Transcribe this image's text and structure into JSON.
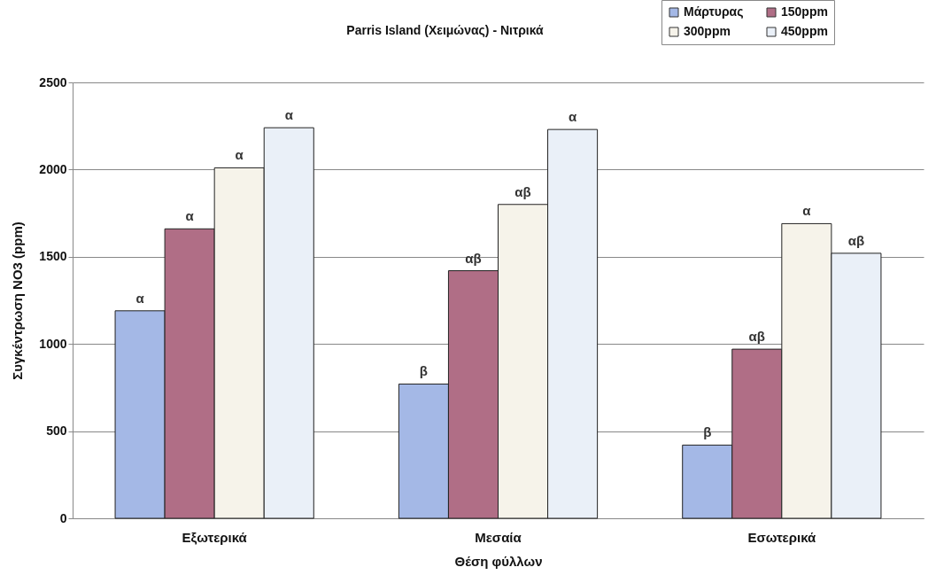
{
  "chart_data": {
    "type": "bar",
    "title": "Parris Island (Χειμώνας) - Νιτρικά",
    "xlabel": "Θέση φύλλων",
    "ylabel": "Συγκέντρωση NO3 (ppm)",
    "categories": [
      "Εξωτερικά",
      "Μεσαία",
      "Εσωτερικά"
    ],
    "series": [
      {
        "name": "Μάρτυρας",
        "color": "#a4b8e6",
        "values": [
          1190,
          770,
          420
        ],
        "value_labels": [
          "α",
          "β",
          "β"
        ]
      },
      {
        "name": "150ppm",
        "color": "#b06e86",
        "values": [
          1660,
          1420,
          970
        ],
        "value_labels": [
          "α",
          "αβ",
          "αβ"
        ]
      },
      {
        "name": "300ppm",
        "color": "#f6f3ea",
        "values": [
          2010,
          1800,
          1690
        ],
        "value_labels": [
          "α",
          "αβ",
          "α"
        ]
      },
      {
        "name": "450ppm",
        "color": "#eaf0f8",
        "values": [
          2240,
          2230,
          1520
        ],
        "value_labels": [
          "α",
          "α",
          "αβ"
        ]
      }
    ],
    "ylim": [
      0,
      2500
    ],
    "yticks": [
      0,
      500,
      1000,
      1500,
      2000,
      2500
    ],
    "grid": "y",
    "legend": "top right"
  }
}
